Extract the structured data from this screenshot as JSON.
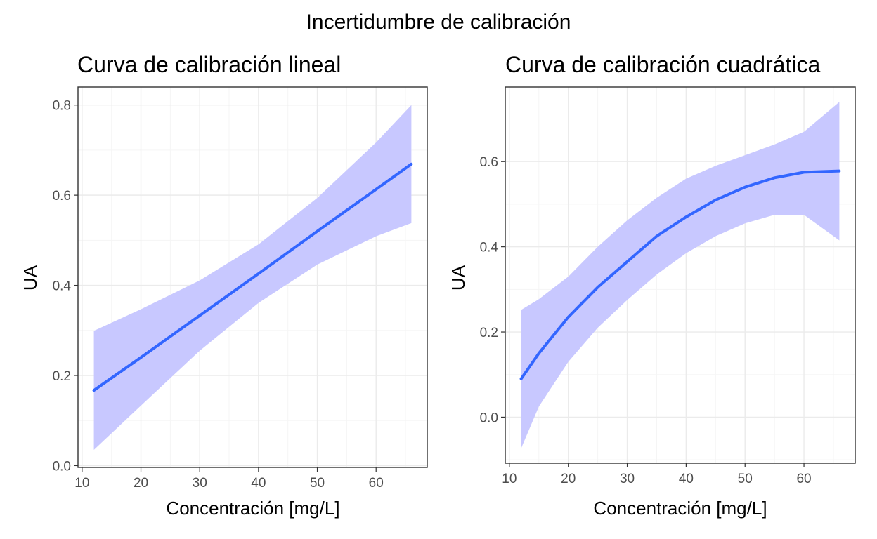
{
  "figure": {
    "title": "Incertidumbre de calibración"
  },
  "colors": {
    "line": "#3366ff",
    "ribbon": "#c8c8ff",
    "grid_major": "#ebebeb",
    "grid_minor": "#f5f5f5",
    "frame": "#333333"
  },
  "chart_data": [
    {
      "type": "line",
      "title": "Curva de calibración lineal",
      "xlabel": "Concentración [mg/L]",
      "ylabel": "UA",
      "xlim": [
        9.3,
        68.7
      ],
      "ylim": [
        -0.004,
        0.84
      ],
      "xticks": [
        10,
        20,
        30,
        40,
        50,
        60
      ],
      "yticks": [
        0.0,
        0.2,
        0.4,
        0.6,
        0.8
      ],
      "ytick_labels": [
        "0.0",
        "0.2",
        "0.4",
        "0.6",
        "0.8"
      ],
      "grid": true,
      "series": [
        {
          "x": [
            12,
            20,
            30,
            40,
            50,
            60,
            66
          ],
          "y": [
            0.167,
            0.24,
            0.333,
            0.426,
            0.52,
            0.613,
            0.669
          ],
          "ymin": [
            0.035,
            0.133,
            0.255,
            0.361,
            0.446,
            0.509,
            0.538
          ],
          "ymax": [
            0.299,
            0.347,
            0.411,
            0.491,
            0.594,
            0.717,
            0.8
          ]
        }
      ]
    },
    {
      "type": "line",
      "title": "Curva de calibración cuadrática",
      "xlabel": "Concentración [mg/L]",
      "ylabel": "UA",
      "xlim": [
        9.3,
        68.7
      ],
      "ylim": [
        -0.108,
        0.775
      ],
      "xticks": [
        10,
        20,
        30,
        40,
        50,
        60
      ],
      "yticks": [
        0.0,
        0.2,
        0.4,
        0.6
      ],
      "ytick_labels": [
        "0.0",
        "0.2",
        "0.4",
        "0.6"
      ],
      "grid": true,
      "series": [
        {
          "x": [
            12,
            15,
            20,
            25,
            30,
            35,
            40,
            45,
            50,
            55,
            60,
            66
          ],
          "y": [
            0.09,
            0.15,
            0.235,
            0.305,
            0.365,
            0.425,
            0.47,
            0.51,
            0.54,
            0.562,
            0.575,
            0.578
          ],
          "ymin": [
            -0.073,
            0.025,
            0.13,
            0.21,
            0.275,
            0.335,
            0.385,
            0.425,
            0.455,
            0.475,
            0.475,
            0.415
          ],
          "ymax": [
            0.252,
            0.277,
            0.33,
            0.4,
            0.462,
            0.515,
            0.56,
            0.59,
            0.615,
            0.64,
            0.67,
            0.74
          ]
        }
      ]
    }
  ]
}
